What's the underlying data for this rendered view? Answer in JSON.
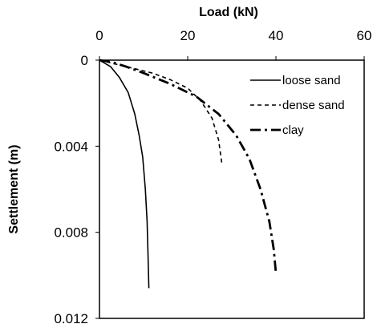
{
  "chart_data": {
    "type": "line",
    "xlabel": "Load (kN)",
    "ylabel": "Settlement (m)",
    "xlim": [
      0,
      60
    ],
    "ylim": [
      0,
      0.012
    ],
    "y_inverted": true,
    "x_axis_position": "top",
    "x_ticks": [
      "0",
      "20",
      "40",
      "60"
    ],
    "y_ticks": [
      "0",
      "0.004",
      "0.008",
      "0.012"
    ],
    "grid": false,
    "legend_position": "top-right",
    "series": [
      {
        "name": "loose sand",
        "line_style": "solid",
        "x": [
          0,
          2.5,
          4.5,
          6.5,
          8,
          9,
          9.8,
          10.4,
          10.8,
          11.0,
          11.2
        ],
        "y": [
          0,
          0.0003,
          0.0008,
          0.0015,
          0.0025,
          0.0035,
          0.0045,
          0.006,
          0.0075,
          0.009,
          0.0106
        ]
      },
      {
        "name": "dense sand",
        "line_style": "dashed",
        "x": [
          0,
          4,
          8,
          12,
          16,
          20,
          23,
          25.5,
          27,
          27.8
        ],
        "y": [
          0,
          0.0002,
          0.0004,
          0.0006,
          0.0009,
          0.0013,
          0.0019,
          0.0027,
          0.0037,
          0.0049
        ]
      },
      {
        "name": "clay",
        "line_style": "dash-dot",
        "x": [
          0,
          3,
          6,
          10,
          16,
          22,
          27,
          31,
          34,
          36.5,
          38.5,
          39.5,
          40
        ],
        "y": [
          0,
          0.0001,
          0.0003,
          0.0006,
          0.0011,
          0.0017,
          0.0025,
          0.0035,
          0.0046,
          0.006,
          0.0075,
          0.0088,
          0.0099
        ]
      }
    ]
  }
}
